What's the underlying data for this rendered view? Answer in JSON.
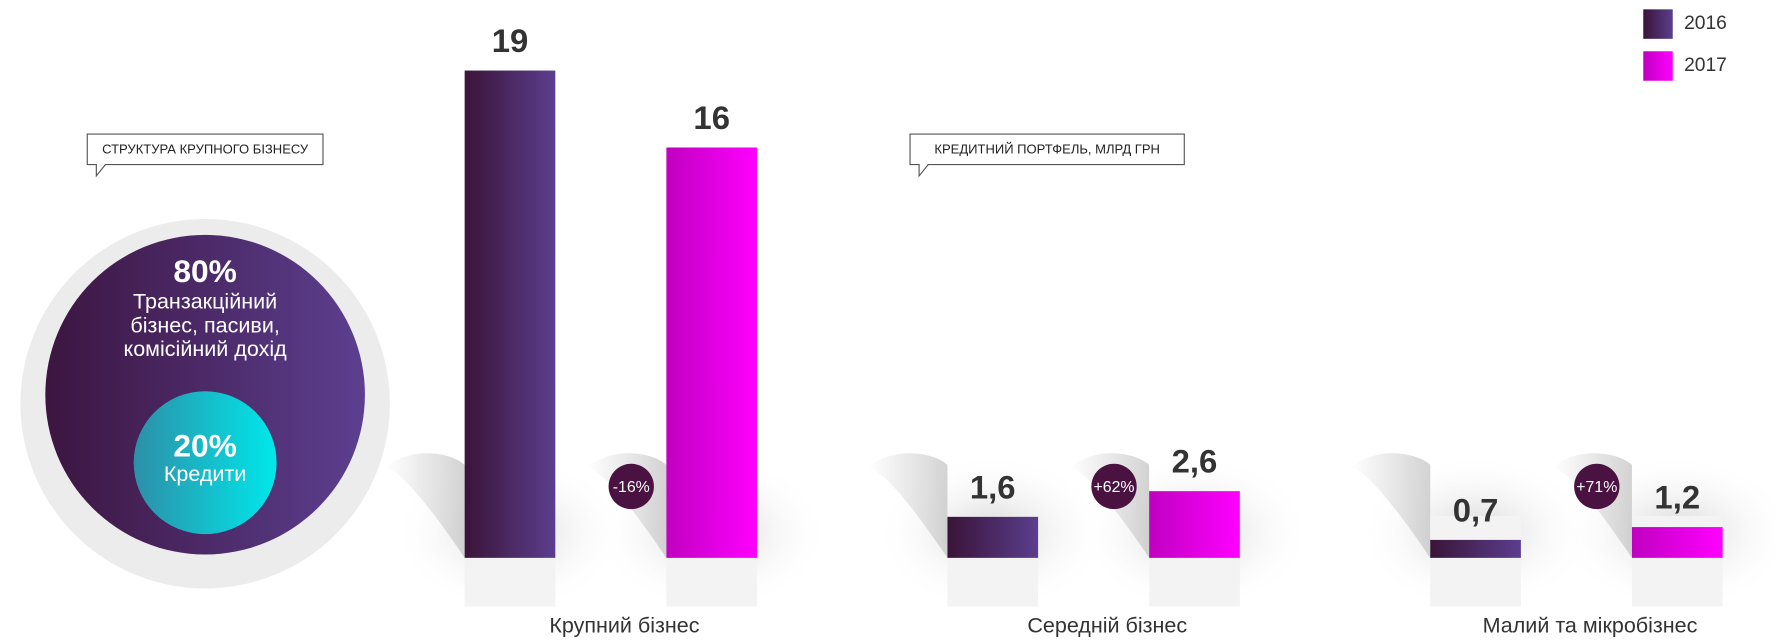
{
  "chart_data": [
    {
      "type": "pie",
      "title": "СТРУКТУРА КРУПНОГО БІЗНЕСУ",
      "categories": [
        "Транзакційний бізнес, пасиви, комісійний дохід",
        "Кредити"
      ],
      "values": [
        80,
        20
      ],
      "value_labels": [
        "80%",
        "20%"
      ],
      "colors": [
        "#4b2a6e",
        "#18c4d4"
      ]
    },
    {
      "type": "bar",
      "title": "КРЕДИТНИЙ ПОРТФЕЛЬ, МЛРД ГРН",
      "categories": [
        "Крупний бізнес",
        "Середній бізнес",
        "Малий та мікробізнес"
      ],
      "series": [
        {
          "name": "2016",
          "color": "#4b2a6e",
          "values": [
            19,
            1.6,
            0.7
          ],
          "value_labels": [
            "19",
            "1,6",
            "0,7"
          ]
        },
        {
          "name": "2017",
          "color": "#ff00ff",
          "values": [
            16,
            2.6,
            1.2
          ],
          "value_labels": [
            "16",
            "2,6",
            "1,2"
          ]
        }
      ],
      "changes": [
        -16,
        62,
        71
      ],
      "change_labels": [
        "-16%",
        "+62%",
        "+71%"
      ],
      "legend": "top-right"
    }
  ]
}
